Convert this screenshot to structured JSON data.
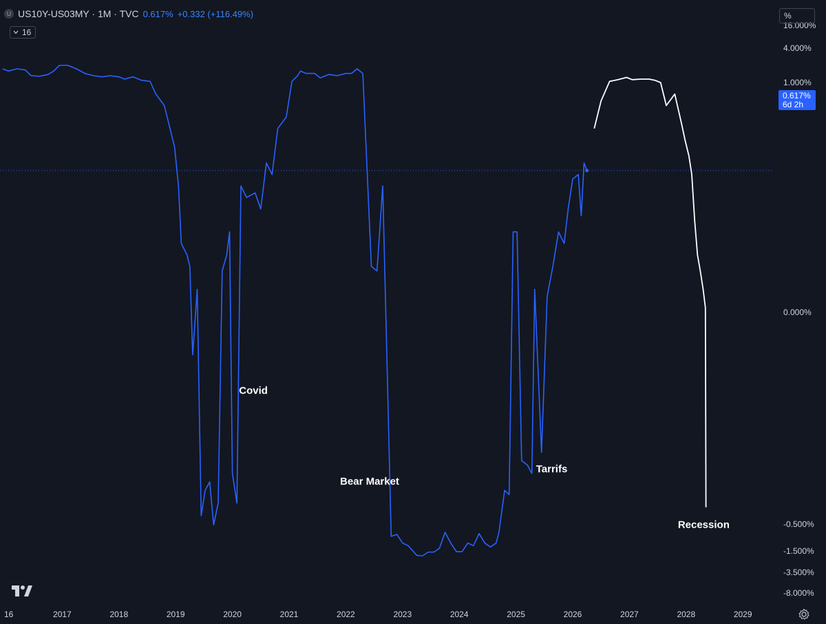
{
  "header": {
    "symbol_logo": "U",
    "title": "US10Y-US03MY · 1M · TVC",
    "last_value": "0.617%",
    "change": "+0.332 (+116.49%)",
    "interval_count": "16"
  },
  "price_axis": {
    "unit": "%",
    "last_price_label": "0.617%",
    "countdown": "6d 2h",
    "tick_labels": [
      "16.000%",
      "4.000%",
      "1.000%",
      "0.000%",
      "-0.500%",
      "-1.500%",
      "-3.500%",
      "-8.000%"
    ]
  },
  "time_axis": {
    "labels": [
      "16",
      "2017",
      "2018",
      "2019",
      "2020",
      "2021",
      "2022",
      "2023",
      "2024",
      "2025",
      "2026",
      "2027",
      "2028",
      "2029"
    ]
  },
  "annotations": {
    "covid": "Covid",
    "bear_market": "Bear Market",
    "tariffs": "Tarrifs",
    "recession": "Recession"
  },
  "colors": {
    "background": "#131722",
    "series_line": "#2962ff",
    "projection_line": "#ffffff",
    "price_line": "#2962ff"
  },
  "icons": {
    "chart_logo": "tradingview-logo-icon",
    "settings": "gear-icon",
    "interval": "chevron-down-icon"
  },
  "chart_data": {
    "type": "line",
    "title": "US10Y-US03MY · 1M · TVC",
    "xlabel": "",
    "ylabel": "",
    "y_scale": "log-style percent",
    "xlim": [
      2015.95,
      2029.6
    ],
    "y_ticks": [
      16,
      4,
      1,
      0,
      -0.5,
      -1.5,
      -3.5,
      -8
    ],
    "grid": false,
    "last_value": 0.617,
    "series": [
      {
        "values_xy": [
          [
            2015.95,
            2.2
          ],
          [
            2016.05,
            2.0
          ],
          [
            2016.2,
            2.2
          ],
          [
            2016.35,
            2.1
          ],
          [
            2016.45,
            1.6
          ],
          [
            2016.6,
            1.55
          ],
          [
            2016.75,
            1.7
          ],
          [
            2016.85,
            2.0
          ],
          [
            2016.95,
            2.5
          ],
          [
            2017.1,
            2.5
          ],
          [
            2017.25,
            2.2
          ],
          [
            2017.4,
            1.8
          ],
          [
            2017.55,
            1.6
          ],
          [
            2017.7,
            1.5
          ],
          [
            2017.85,
            1.6
          ],
          [
            2018.0,
            1.5
          ],
          [
            2018.1,
            1.3
          ],
          [
            2018.25,
            1.5
          ],
          [
            2018.4,
            1.2
          ],
          [
            2018.55,
            1.1
          ],
          [
            2018.65,
            0.95
          ],
          [
            2018.8,
            0.9
          ],
          [
            2018.9,
            0.8
          ],
          [
            2018.98,
            0.72
          ],
          [
            2019.05,
            0.55
          ],
          [
            2019.1,
            0.3
          ],
          [
            2019.2,
            0.25
          ],
          [
            2019.25,
            0.2
          ],
          [
            2019.3,
            -0.1
          ],
          [
            2019.38,
            0.1
          ],
          [
            2019.45,
            -0.48
          ],
          [
            2019.52,
            -0.42
          ],
          [
            2019.6,
            -0.4
          ],
          [
            2019.67,
            -0.52
          ],
          [
            2019.75,
            -0.45
          ],
          [
            2019.82,
            0.18
          ],
          [
            2019.9,
            0.25
          ],
          [
            2019.95,
            0.35
          ],
          [
            2020.0,
            -0.38
          ],
          [
            2020.08,
            -0.45
          ],
          [
            2020.15,
            0.55
          ],
          [
            2020.25,
            0.5
          ],
          [
            2020.4,
            0.52
          ],
          [
            2020.5,
            0.45
          ],
          [
            2020.6,
            0.65
          ],
          [
            2020.7,
            0.6
          ],
          [
            2020.8,
            0.8
          ],
          [
            2020.95,
            0.85
          ],
          [
            2021.05,
            1.1
          ],
          [
            2021.15,
            1.6
          ],
          [
            2021.2,
            2.0
          ],
          [
            2021.3,
            1.8
          ],
          [
            2021.45,
            1.8
          ],
          [
            2021.55,
            1.4
          ],
          [
            2021.7,
            1.7
          ],
          [
            2021.85,
            1.6
          ],
          [
            2022.0,
            1.8
          ],
          [
            2022.1,
            1.8
          ],
          [
            2022.2,
            2.2
          ],
          [
            2022.3,
            1.8
          ],
          [
            2022.45,
            0.2
          ],
          [
            2022.55,
            0.18
          ],
          [
            2022.65,
            0.55
          ],
          [
            2022.75,
            -0.25
          ],
          [
            2022.8,
            -0.95
          ],
          [
            2022.9,
            -0.88
          ],
          [
            2023.0,
            -1.2
          ],
          [
            2023.1,
            -1.3
          ],
          [
            2023.25,
            -1.9
          ],
          [
            2023.35,
            -1.95
          ],
          [
            2023.45,
            -1.6
          ],
          [
            2023.55,
            -1.6
          ],
          [
            2023.65,
            -1.4
          ],
          [
            2023.75,
            -0.8
          ],
          [
            2023.85,
            -1.2
          ],
          [
            2023.95,
            -1.55
          ],
          [
            2024.05,
            -1.55
          ],
          [
            2024.15,
            -1.2
          ],
          [
            2024.25,
            -1.3
          ],
          [
            2024.35,
            -0.85
          ],
          [
            2024.45,
            -1.2
          ],
          [
            2024.55,
            -1.35
          ],
          [
            2024.65,
            -1.2
          ],
          [
            2024.7,
            -0.8
          ],
          [
            2024.8,
            -0.42
          ],
          [
            2024.88,
            -0.43
          ],
          [
            2024.95,
            0.35
          ],
          [
            2025.02,
            0.35
          ],
          [
            2025.1,
            -0.35
          ],
          [
            2025.2,
            -0.36
          ],
          [
            2025.28,
            -0.38
          ],
          [
            2025.33,
            0.1
          ],
          [
            2025.45,
            -0.33
          ],
          [
            2025.55,
            0.07
          ],
          [
            2025.65,
            0.2
          ],
          [
            2025.75,
            0.35
          ],
          [
            2025.85,
            0.3
          ],
          [
            2025.92,
            0.45
          ],
          [
            2026.0,
            0.58
          ],
          [
            2026.1,
            0.6
          ],
          [
            2026.15,
            0.42
          ],
          [
            2026.2,
            0.65
          ],
          [
            2026.25,
            0.617
          ]
        ],
        "color": "#2962ff"
      },
      {
        "values_xy": [
          [
            2026.38,
            0.8
          ],
          [
            2026.5,
            0.92
          ],
          [
            2026.65,
            1.1
          ],
          [
            2026.8,
            1.25
          ],
          [
            2026.95,
            1.45
          ],
          [
            2027.05,
            1.25
          ],
          [
            2027.2,
            1.3
          ],
          [
            2027.35,
            1.3
          ],
          [
            2027.45,
            1.2
          ],
          [
            2027.55,
            1.0
          ],
          [
            2027.65,
            0.9
          ],
          [
            2027.8,
            0.95
          ],
          [
            2027.92,
            0.82
          ],
          [
            2027.98,
            0.75
          ],
          [
            2028.05,
            0.68
          ],
          [
            2028.1,
            0.6
          ],
          [
            2028.15,
            0.4
          ],
          [
            2028.2,
            0.25
          ],
          [
            2028.25,
            0.18
          ],
          [
            2028.3,
            0.1
          ],
          [
            2028.34,
            0.02
          ],
          [
            2028.35,
            -0.46
          ]
        ],
        "color": "#ffffff"
      }
    ]
  }
}
